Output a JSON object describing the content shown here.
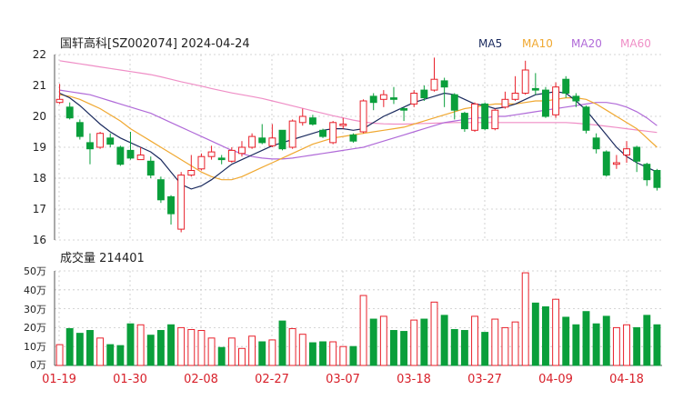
{
  "colors": {
    "up": "#e8202a",
    "down": "#0a9f3b",
    "ma5": "#1a2a5e",
    "ma10": "#f0a830",
    "ma20": "#b06ad8",
    "ma60": "#ef8ec6",
    "grid": "#c8c8c8",
    "axis_text": "#222222",
    "date_text": "#d8202a"
  },
  "chart_data": [
    {
      "type": "candlestick",
      "title": "国轩高科[SZ002074] 2024-04-24",
      "ylim": [
        16,
        22
      ],
      "y_ticks": [
        "22",
        "21",
        "20",
        "19",
        "18",
        "17",
        "16"
      ],
      "legend": [
        "MA5",
        "MA10",
        "MA20",
        "MA60"
      ],
      "legend_position": "top-right",
      "candles": [
        {
          "o": 20.45,
          "c": 20.55,
          "h": 21.05,
          "l": 20.4
        },
        {
          "o": 20.3,
          "c": 19.95,
          "h": 20.45,
          "l": 19.9
        },
        {
          "o": 19.8,
          "c": 19.35,
          "h": 19.9,
          "l": 19.25
        },
        {
          "o": 19.15,
          "c": 18.95,
          "h": 19.45,
          "l": 18.45
        },
        {
          "o": 19.0,
          "c": 19.45,
          "h": 19.5,
          "l": 18.95
        },
        {
          "o": 19.3,
          "c": 19.1,
          "h": 19.45,
          "l": 19.0
        },
        {
          "o": 19.0,
          "c": 18.45,
          "h": 19.05,
          "l": 18.4
        },
        {
          "o": 18.9,
          "c": 18.65,
          "h": 19.5,
          "l": 18.6
        },
        {
          "o": 18.6,
          "c": 18.75,
          "h": 19.0,
          "l": 18.6
        },
        {
          "o": 18.55,
          "c": 18.1,
          "h": 18.7,
          "l": 18.0
        },
        {
          "o": 17.95,
          "c": 17.3,
          "h": 18.05,
          "l": 17.2
        },
        {
          "o": 17.4,
          "c": 16.85,
          "h": 17.45,
          "l": 16.5
        },
        {
          "o": 16.35,
          "c": 18.1,
          "h": 18.2,
          "l": 16.25
        },
        {
          "o": 18.1,
          "c": 18.25,
          "h": 18.75,
          "l": 18.05
        },
        {
          "o": 18.3,
          "c": 18.7,
          "h": 18.8,
          "l": 18.25
        },
        {
          "o": 18.7,
          "c": 18.85,
          "h": 19.05,
          "l": 18.6
        },
        {
          "o": 18.65,
          "c": 18.6,
          "h": 18.75,
          "l": 18.45
        },
        {
          "o": 18.55,
          "c": 18.9,
          "h": 19.0,
          "l": 18.5
        },
        {
          "o": 18.8,
          "c": 19.0,
          "h": 19.2,
          "l": 18.7
        },
        {
          "o": 19.0,
          "c": 19.35,
          "h": 19.45,
          "l": 18.95
        },
        {
          "o": 19.3,
          "c": 19.15,
          "h": 19.75,
          "l": 19.1
        },
        {
          "o": 19.05,
          "c": 19.3,
          "h": 19.75,
          "l": 19.0
        },
        {
          "o": 19.55,
          "c": 18.95,
          "h": 19.55,
          "l": 18.9
        },
        {
          "o": 19.0,
          "c": 19.85,
          "h": 19.9,
          "l": 18.95
        },
        {
          "o": 19.8,
          "c": 20.0,
          "h": 20.25,
          "l": 19.7
        },
        {
          "o": 19.95,
          "c": 19.75,
          "h": 20.05,
          "l": 19.7
        },
        {
          "o": 19.55,
          "c": 19.35,
          "h": 19.6,
          "l": 19.3
        },
        {
          "o": 19.15,
          "c": 19.8,
          "h": 19.85,
          "l": 19.1
        },
        {
          "o": 19.7,
          "c": 19.75,
          "h": 19.95,
          "l": 19.6
        },
        {
          "o": 19.4,
          "c": 19.2,
          "h": 19.45,
          "l": 19.15
        },
        {
          "o": 19.5,
          "c": 20.5,
          "h": 20.55,
          "l": 19.45
        },
        {
          "o": 20.65,
          "c": 20.45,
          "h": 20.75,
          "l": 20.2
        },
        {
          "o": 20.55,
          "c": 20.7,
          "h": 20.85,
          "l": 20.3
        },
        {
          "o": 20.6,
          "c": 20.55,
          "h": 20.95,
          "l": 20.4
        },
        {
          "o": 20.25,
          "c": 20.2,
          "h": 20.3,
          "l": 19.85
        },
        {
          "o": 20.4,
          "c": 20.75,
          "h": 20.85,
          "l": 20.3
        },
        {
          "o": 20.85,
          "c": 20.6,
          "h": 21.0,
          "l": 20.5
        },
        {
          "o": 20.85,
          "c": 21.2,
          "h": 21.9,
          "l": 20.8
        },
        {
          "o": 21.15,
          "c": 20.95,
          "h": 21.25,
          "l": 20.3
        },
        {
          "o": 20.7,
          "c": 20.2,
          "h": 20.75,
          "l": 19.9
        },
        {
          "o": 20.1,
          "c": 19.6,
          "h": 20.15,
          "l": 19.5
        },
        {
          "o": 19.55,
          "c": 20.4,
          "h": 20.45,
          "l": 19.5
        },
        {
          "o": 20.4,
          "c": 19.6,
          "h": 20.45,
          "l": 19.55
        },
        {
          "o": 19.6,
          "c": 20.2,
          "h": 20.25,
          "l": 19.55
        },
        {
          "o": 20.3,
          "c": 20.55,
          "h": 20.8,
          "l": 20.25
        },
        {
          "o": 20.55,
          "c": 20.75,
          "h": 21.3,
          "l": 20.5
        },
        {
          "o": 20.75,
          "c": 21.5,
          "h": 21.8,
          "l": 20.7
        },
        {
          "o": 20.9,
          "c": 20.85,
          "h": 21.4,
          "l": 20.7
        },
        {
          "o": 20.85,
          "c": 20.0,
          "h": 20.95,
          "l": 19.95
        },
        {
          "o": 20.05,
          "c": 20.95,
          "h": 21.1,
          "l": 19.95
        },
        {
          "o": 21.2,
          "c": 20.75,
          "h": 21.3,
          "l": 20.6
        },
        {
          "o": 20.65,
          "c": 20.5,
          "h": 20.75,
          "l": 20.3
        },
        {
          "o": 20.3,
          "c": 19.55,
          "h": 20.35,
          "l": 19.45
        },
        {
          "o": 19.3,
          "c": 18.95,
          "h": 19.45,
          "l": 18.8
        },
        {
          "o": 18.85,
          "c": 18.1,
          "h": 18.9,
          "l": 18.05
        },
        {
          "o": 18.45,
          "c": 18.5,
          "h": 18.75,
          "l": 18.3
        },
        {
          "o": 18.75,
          "c": 18.95,
          "h": 19.2,
          "l": 18.5
        },
        {
          "o": 19.0,
          "c": 18.55,
          "h": 19.05,
          "l": 18.2
        },
        {
          "o": 18.45,
          "c": 17.95,
          "h": 18.5,
          "l": 17.75
        },
        {
          "o": 18.25,
          "c": 17.7,
          "h": 18.3,
          "l": 17.6
        }
      ],
      "ma5": [
        20.75,
        20.6,
        20.35,
        20.05,
        19.75,
        19.5,
        19.3,
        19.15,
        19.0,
        18.85,
        18.6,
        18.2,
        17.8,
        17.65,
        17.75,
        17.95,
        18.2,
        18.45,
        18.6,
        18.75,
        18.9,
        19.05,
        19.15,
        19.25,
        19.35,
        19.45,
        19.55,
        19.6,
        19.6,
        19.55,
        19.6,
        19.8,
        20.0,
        20.15,
        20.3,
        20.45,
        20.55,
        20.65,
        20.75,
        20.7,
        20.55,
        20.4,
        20.35,
        20.25,
        20.3,
        20.4,
        20.55,
        20.7,
        20.75,
        20.8,
        20.75,
        20.5,
        20.2,
        19.8,
        19.4,
        19.0,
        18.7,
        18.5,
        18.35,
        18.2
      ],
      "ma10": [
        20.7,
        20.65,
        20.55,
        20.4,
        20.25,
        20.05,
        19.85,
        19.6,
        19.4,
        19.2,
        19.0,
        18.8,
        18.6,
        18.4,
        18.2,
        18.05,
        17.95,
        17.95,
        18.05,
        18.2,
        18.35,
        18.5,
        18.65,
        18.8,
        18.95,
        19.1,
        19.2,
        19.3,
        19.35,
        19.4,
        19.45,
        19.5,
        19.55,
        19.6,
        19.65,
        19.75,
        19.85,
        19.95,
        20.05,
        20.15,
        20.25,
        20.3,
        20.35,
        20.4,
        20.4,
        20.4,
        20.45,
        20.5,
        20.5,
        20.55,
        20.6,
        20.6,
        20.55,
        20.4,
        20.2,
        20.0,
        19.8,
        19.6,
        19.3,
        19.0
      ],
      "ma20": [
        20.85,
        20.8,
        20.75,
        20.7,
        20.6,
        20.5,
        20.4,
        20.3,
        20.2,
        20.1,
        19.95,
        19.8,
        19.65,
        19.5,
        19.35,
        19.2,
        19.05,
        18.9,
        18.8,
        18.7,
        18.65,
        18.62,
        18.62,
        18.65,
        18.7,
        18.75,
        18.8,
        18.85,
        18.9,
        18.95,
        19.0,
        19.1,
        19.2,
        19.3,
        19.4,
        19.5,
        19.6,
        19.7,
        19.8,
        19.85,
        19.9,
        19.95,
        19.95,
        20.0,
        20.0,
        20.05,
        20.1,
        20.15,
        20.2,
        20.25,
        20.3,
        20.35,
        20.4,
        20.45,
        20.45,
        20.4,
        20.3,
        20.15,
        19.95,
        19.7
      ],
      "ma60": [
        21.8,
        21.75,
        21.7,
        21.65,
        21.6,
        21.55,
        21.5,
        21.45,
        21.4,
        21.35,
        21.28,
        21.2,
        21.12,
        21.05,
        20.98,
        20.9,
        20.83,
        20.76,
        20.7,
        20.64,
        20.58,
        20.5,
        20.42,
        20.34,
        20.26,
        20.18,
        20.1,
        20.02,
        19.95,
        19.88,
        19.82,
        19.78,
        19.76,
        19.75,
        19.75,
        19.76,
        19.77,
        19.78,
        19.79,
        19.8,
        19.8,
        19.8,
        19.8,
        19.8,
        19.8,
        19.8,
        19.8,
        19.8,
        19.8,
        19.8,
        19.8,
        19.78,
        19.75,
        19.72,
        19.68,
        19.64,
        19.6,
        19.56,
        19.52,
        19.48
      ]
    },
    {
      "type": "bar",
      "title": "成交量 214401",
      "ylim": [
        0,
        50
      ],
      "y_ticks": [
        "50万",
        "40万",
        "30万",
        "20万",
        "10万",
        "0万"
      ],
      "values": [
        11,
        19.5,
        17,
        18.5,
        14.5,
        11,
        10.5,
        22,
        21.5,
        16,
        18.5,
        21.5,
        20,
        19,
        18.5,
        14.5,
        9.5,
        14.5,
        9,
        15.5,
        12.5,
        13.5,
        23.5,
        19.5,
        16.5,
        12,
        12.5,
        12.5,
        10,
        10,
        37,
        24.5,
        26,
        18.5,
        18,
        24,
        24.5,
        33.5,
        26.5,
        19,
        18.5,
        26,
        17.5,
        24.5,
        20,
        23,
        49,
        33,
        31,
        35,
        25.5,
        21.5,
        28.5,
        22,
        26,
        20,
        21.5,
        20,
        26.5,
        21.5
      ],
      "x_tick_labels": [
        "01-19",
        "01-30",
        "02-08",
        "02-27",
        "03-07",
        "03-18",
        "03-27",
        "04-09",
        "04-18"
      ]
    }
  ]
}
